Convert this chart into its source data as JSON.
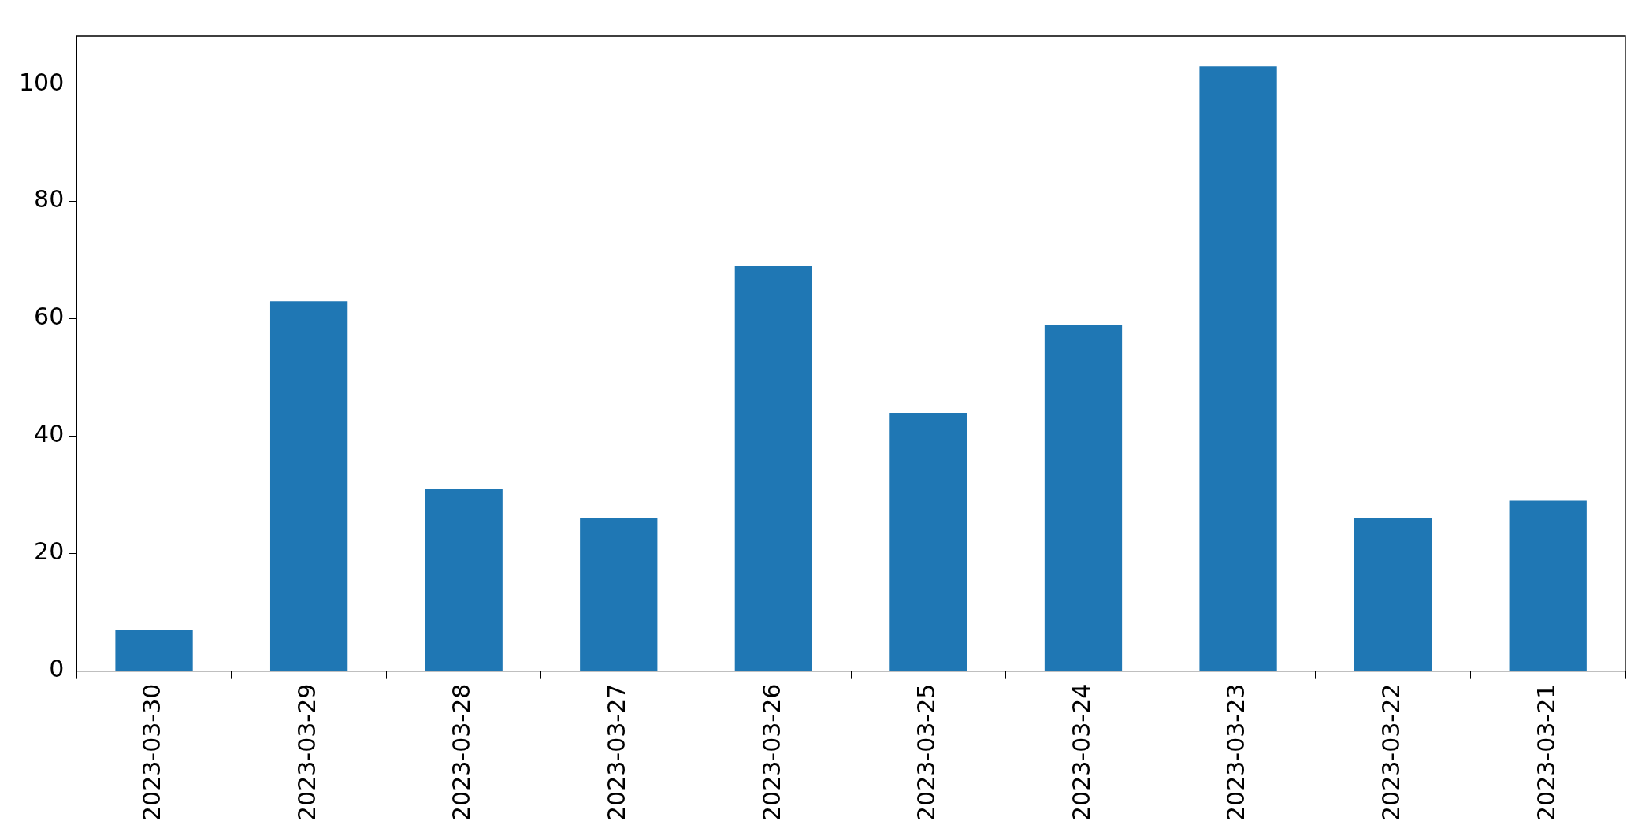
{
  "chart_data": {
    "type": "bar",
    "categories": [
      "2023-03-30",
      "2023-03-29",
      "2023-03-28",
      "2023-03-27",
      "2023-03-26",
      "2023-03-25",
      "2023-03-24",
      "2023-03-23",
      "2023-03-22",
      "2023-03-21"
    ],
    "values": [
      7,
      63,
      31,
      26,
      69,
      44,
      59,
      103,
      26,
      29
    ],
    "color": "#1f77b4",
    "ylim": [
      0,
      108.15
    ],
    "yticks": [
      0,
      20,
      40,
      60,
      80,
      100
    ],
    "grid": false,
    "legend": false
  }
}
